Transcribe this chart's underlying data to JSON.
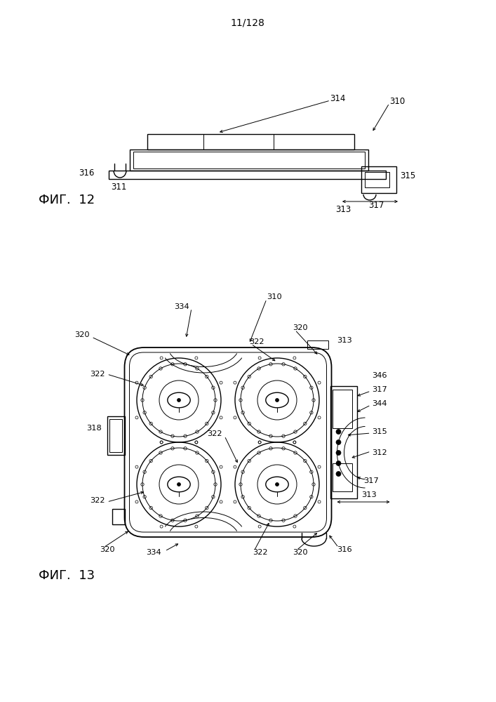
{
  "page_label": "11/128",
  "fig12_label": "ФИГ.  12",
  "fig13_label": "ФИГ.  13",
  "bg_color": "#ffffff",
  "line_color": "#000000"
}
